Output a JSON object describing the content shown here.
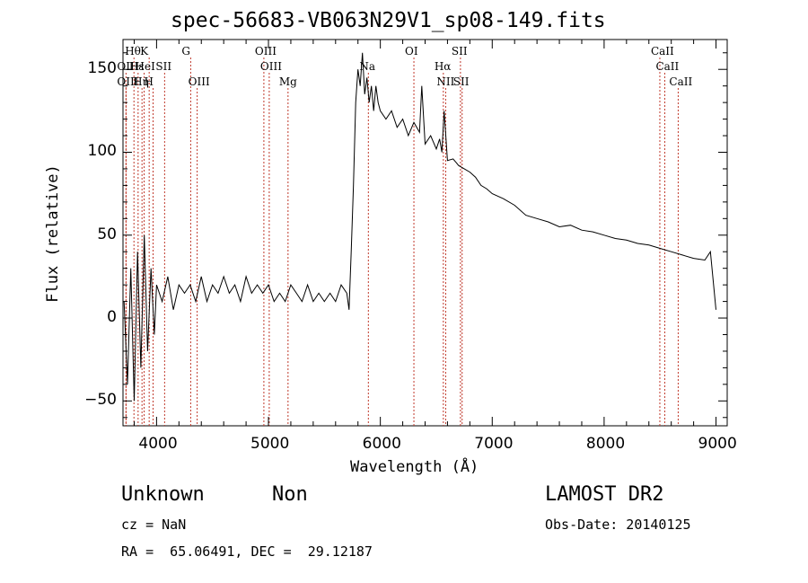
{
  "chart_data": {
    "type": "line",
    "title": "spec-56683-VB063N29V1_sp08-149.fits",
    "xlabel": "Wavelength (Å)",
    "ylabel": "Flux (relative)",
    "xlim": [
      3700,
      9100
    ],
    "ylim": [
      -65,
      168
    ],
    "xticks": [
      4000,
      5000,
      6000,
      7000,
      8000,
      9000
    ],
    "xtick_labels": [
      "4000",
      "5000",
      "6000",
      "7000",
      "8000",
      "9000"
    ],
    "yticks": [
      -50,
      0,
      50,
      100,
      150
    ],
    "ytick_labels": [
      "−50",
      "0",
      "50",
      "100",
      "150"
    ],
    "grid": false,
    "series": [
      {
        "name": "",
        "color": "#000000",
        "x": [
          3710,
          3740,
          3770,
          3800,
          3830,
          3860,
          3890,
          3920,
          3950,
          3980,
          4000,
          4050,
          4100,
          4150,
          4200,
          4250,
          4300,
          4350,
          4400,
          4450,
          4500,
          4550,
          4600,
          4650,
          4700,
          4750,
          4800,
          4850,
          4900,
          4950,
          5000,
          5050,
          5100,
          5150,
          5200,
          5250,
          5300,
          5350,
          5400,
          5450,
          5500,
          5550,
          5600,
          5650,
          5700,
          5720,
          5740,
          5760,
          5780,
          5800,
          5820,
          5840,
          5860,
          5880,
          5900,
          5920,
          5940,
          5960,
          5980,
          6000,
          6050,
          6100,
          6150,
          6200,
          6250,
          6300,
          6350,
          6370,
          6400,
          6450,
          6500,
          6530,
          6550,
          6570,
          6600,
          6650,
          6700,
          6750,
          6800,
          6850,
          6900,
          6950,
          7000,
          7100,
          7200,
          7300,
          7400,
          7500,
          7600,
          7700,
          7800,
          7900,
          8000,
          8100,
          8200,
          8300,
          8400,
          8500,
          8600,
          8700,
          8800,
          8900,
          8950,
          9000
        ],
        "y": [
          10,
          -40,
          30,
          -50,
          40,
          -30,
          50,
          -20,
          30,
          -10,
          20,
          10,
          25,
          5,
          20,
          15,
          20,
          10,
          25,
          10,
          20,
          15,
          25,
          15,
          20,
          10,
          25,
          15,
          20,
          15,
          20,
          10,
          15,
          10,
          20,
          15,
          10,
          20,
          10,
          15,
          10,
          15,
          10,
          20,
          15,
          5,
          40,
          80,
          130,
          150,
          140,
          160,
          135,
          145,
          130,
          140,
          125,
          140,
          130,
          125,
          120,
          125,
          115,
          120,
          110,
          118,
          112,
          140,
          105,
          110,
          102,
          108,
          100,
          125,
          95,
          96,
          92,
          90,
          88,
          85,
          80,
          78,
          75,
          72,
          68,
          62,
          60,
          58,
          55,
          56,
          53,
          52,
          50,
          48,
          47,
          45,
          44,
          42,
          40,
          38,
          36,
          35,
          40,
          5
        ]
      }
    ],
    "lines": [
      {
        "label": "Hθ",
        "x": 3798,
        "row": 1
      },
      {
        "label": "OII",
        "x": 3727,
        "row": 2
      },
      {
        "label": "OIII",
        "x": 3727,
        "row": 3
      },
      {
        "label": "Hε",
        "x": 3835,
        "row": 2
      },
      {
        "label": "Hη",
        "x": 3870,
        "row": 3
      },
      {
        "label": "HeI",
        "x": 3889,
        "row": 2
      },
      {
        "label": "K",
        "x": 3934,
        "row": 1
      },
      {
        "label": "H",
        "x": 3969,
        "row": 3
      },
      {
        "label": "SII",
        "x": 4072,
        "row": 2
      },
      {
        "label": "G",
        "x": 4305,
        "row": 1
      },
      {
        "label": "OIII",
        "x": 4363,
        "row": 3
      },
      {
        "label": "OIII",
        "x": 4959,
        "row": 1
      },
      {
        "label": "OIII",
        "x": 5007,
        "row": 2
      },
      {
        "label": "Mg",
        "x": 5175,
        "row": 3
      },
      {
        "label": "Na",
        "x": 5893,
        "row": 2
      },
      {
        "label": "OI",
        "x": 6300,
        "row": 1
      },
      {
        "label": "Hα",
        "x": 6563,
        "row": 2
      },
      {
        "label": "NII",
        "x": 6584,
        "row": 3
      },
      {
        "label": "SII",
        "x": 6716,
        "row": 1
      },
      {
        "label": "SII",
        "x": 6731,
        "row": 3
      },
      {
        "label": "CaII",
        "x": 8498,
        "row": 1
      },
      {
        "label": "CaII",
        "x": 8542,
        "row": 2
      },
      {
        "label": "CaII",
        "x": 8662,
        "row": 3
      }
    ]
  },
  "info": {
    "class_label": "Unknown",
    "subclass_label": "Non",
    "survey": "LAMOST DR2",
    "cz": "cz = NaN",
    "obs_date": "Obs-Date: 20140125",
    "radec": "RA =  65.06491, DEC =  29.12187"
  }
}
